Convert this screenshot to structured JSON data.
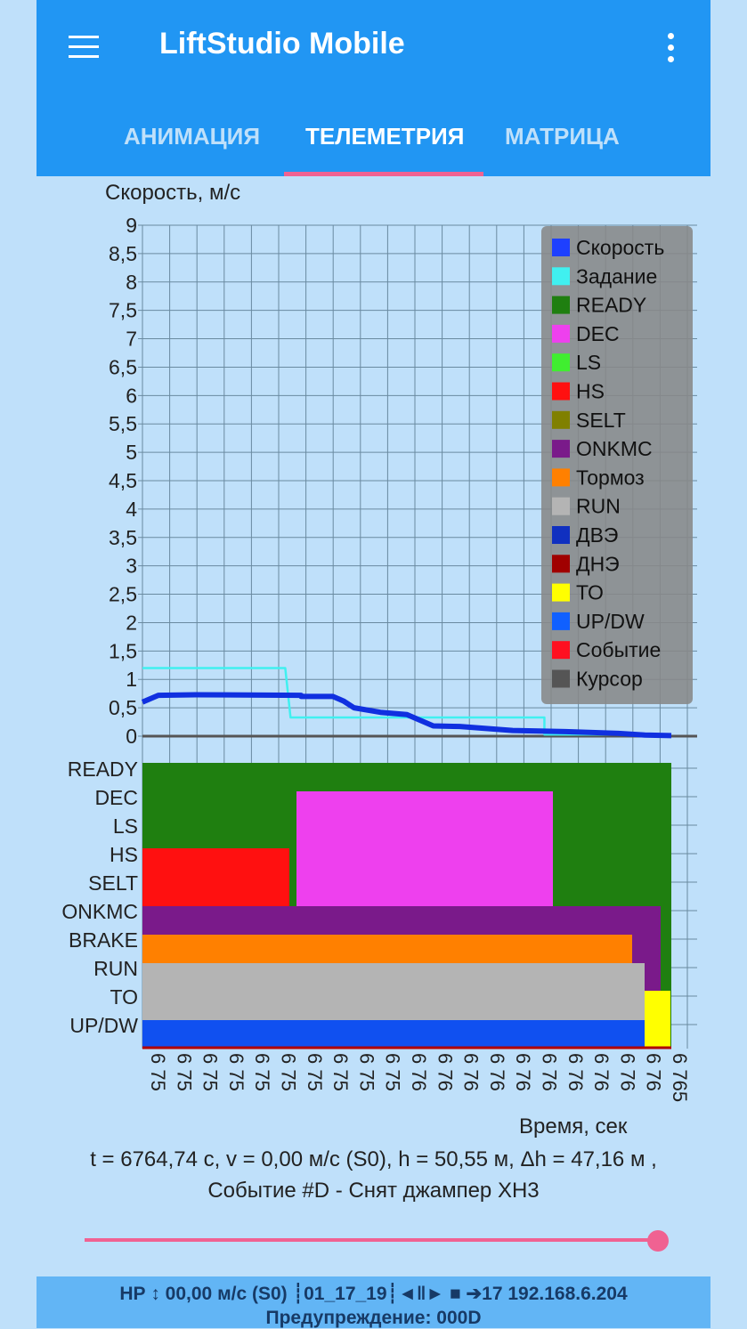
{
  "app": {
    "title": "LiftStudio Mobile"
  },
  "tabs": [
    {
      "label": "АНИМАЦИЯ"
    },
    {
      "label": "ТЕЛЕМЕТРИЯ"
    },
    {
      "label": "МАТРИЦА"
    }
  ],
  "chart": {
    "ylabel": "Скорость, м/с",
    "xlabel": "Время, сек",
    "yticks": [
      "9",
      "8,5",
      "8",
      "7,5",
      "7",
      "6,5",
      "6",
      "5,5",
      "5",
      "4,5",
      "4",
      "3,5",
      "3",
      "2,5",
      "2",
      "1,5",
      "1",
      "0,5",
      "0"
    ],
    "signal_labels": [
      "READY",
      "DEC",
      "LS",
      "HS",
      "SELT",
      "ONKMC",
      "BRAKE",
      "RUN",
      "TO",
      "UP/DW"
    ],
    "xticks": [
      "6 75",
      "6 75",
      "6 75",
      "6 75",
      "6 75",
      "6 75",
      "6 75",
      "6 75",
      "6 75",
      "6 75",
      "6 76",
      "6 76",
      "6 76",
      "6 76",
      "6 76",
      "6 76",
      "6 76",
      "6 76",
      "6 76",
      "6 76",
      "6 765"
    ]
  },
  "legend": [
    {
      "label": "Скорость",
      "color": "#1e40ff"
    },
    {
      "label": "Задание",
      "color": "#40f0f0"
    },
    {
      "label": "READY",
      "color": "#1f7f10"
    },
    {
      "label": "DEC",
      "color": "#ee40ee"
    },
    {
      "label": "LS",
      "color": "#40ee30"
    },
    {
      "label": "HS",
      "color": "#ff1010"
    },
    {
      "label": "SELT",
      "color": "#808000"
    },
    {
      "label": "ONKMC",
      "color": "#7a1a8a"
    },
    {
      "label": "Тормоз",
      "color": "#ff8000"
    },
    {
      "label": "RUN",
      "color": "#b4b4b4"
    },
    {
      "label": "ДВЭ",
      "color": "#1030c0"
    },
    {
      "label": "ДНЭ",
      "color": "#a00000"
    },
    {
      "label": "ТО",
      "color": "#ffff00"
    },
    {
      "label": "UP/DW",
      "color": "#1060ff"
    },
    {
      "label": "Событие",
      "color": "#ff1020"
    },
    {
      "label": "Курсор",
      "color": "#555555"
    }
  ],
  "chart_data": {
    "type": "line",
    "ylim": [
      0,
      9
    ],
    "series": [
      {
        "name": "Скорость",
        "x": [
          0,
          0.03,
          0.1,
          0.3,
          0.3,
          0.3,
          0.36,
          0.38,
          0.4,
          0.45,
          0.45,
          0.5,
          0.55,
          0.6,
          0.7,
          0.8,
          0.9,
          0.95,
          1.0
        ],
        "values": [
          0.6,
          0.72,
          0.73,
          0.72,
          0.72,
          0.7,
          0.7,
          0.62,
          0.5,
          0.42,
          0.42,
          0.38,
          0.18,
          0.17,
          0.1,
          0.08,
          0.05,
          0.02,
          0.01
        ]
      },
      {
        "name": "Задание",
        "x": [
          0,
          0.27,
          0.28,
          0.76,
          0.76,
          1.0
        ],
        "values": [
          1.2,
          1.2,
          0.33,
          0.33,
          0.03,
          0.03
        ]
      }
    ],
    "grid": true,
    "legend_position": "top-right"
  },
  "status": {
    "line1": "t = 6764,74 с, v = 0,00 м/с (S0), h = 50,55 м, Δh = 47,16 м ,",
    "line2": "Событие #D - Снят джампер ХН3"
  },
  "slider": {
    "value": 0.99
  },
  "bottom": {
    "line1": "НР ↕ 00,00 м/с (S0) ┊01_17_19┊◄‖► ■ ➔17 192.168.6.204",
    "line2": "Предупреждение: 000D"
  }
}
